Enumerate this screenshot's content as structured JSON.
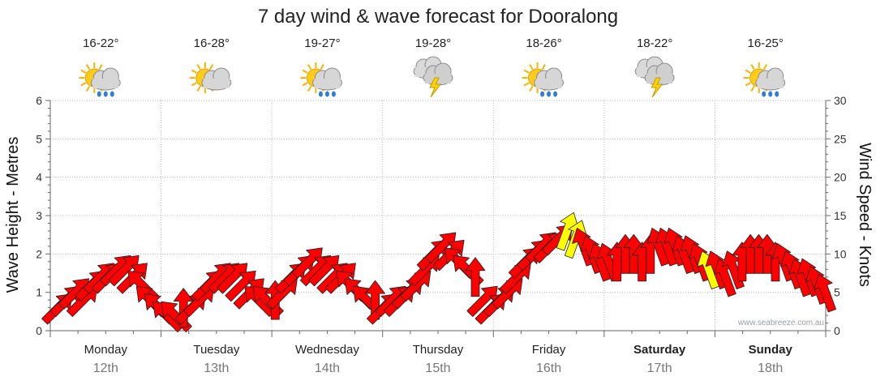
{
  "chart_data": {
    "type": "line",
    "title": "7 day wind & wave forecast for Dooralong",
    "ylabel_left": "Wave Height - Metres",
    "ylabel_right": "Wind Speed - Knots",
    "ylim_left": [
      0,
      6
    ],
    "ylim_right": [
      0,
      30
    ],
    "left_ticks": [
      "0",
      "1",
      "2",
      "3",
      "4",
      "5",
      "6"
    ],
    "right_ticks": [
      "0",
      "5",
      "10",
      "15",
      "20",
      "25",
      "30"
    ],
    "credit": "www.seabreeze.com.au",
    "days": [
      {
        "name": "Monday",
        "date": "12th",
        "bold": false,
        "temp": "16-22°",
        "icon": "partly-cloudy-rain-icon"
      },
      {
        "name": "Tuesday",
        "date": "13th",
        "bold": false,
        "temp": "16-28°",
        "icon": "partly-cloudy-icon"
      },
      {
        "name": "Wednesday",
        "date": "14th",
        "bold": false,
        "temp": "19-27°",
        "icon": "partly-cloudy-rain-icon"
      },
      {
        "name": "Thursday",
        "date": "15th",
        "bold": false,
        "temp": "19-28°",
        "icon": "thunderstorm-icon"
      },
      {
        "name": "Friday",
        "date": "16th",
        "bold": false,
        "temp": "18-26°",
        "icon": "partly-cloudy-rain-icon"
      },
      {
        "name": "Saturday",
        "date": "17th",
        "bold": true,
        "temp": "18-22°",
        "icon": "thunderstorm-icon"
      },
      {
        "name": "Sunday",
        "date": "18th",
        "bold": true,
        "temp": "16-25°",
        "icon": "partly-cloudy-rain-icon"
      }
    ],
    "wind_series": {
      "name": "Wind speed (knots)",
      "values": [
        3,
        4,
        5,
        4,
        6,
        7,
        7,
        8,
        8,
        7,
        6,
        4,
        3,
        2,
        2,
        3,
        3,
        4,
        6,
        7,
        7,
        7,
        6,
        5,
        4,
        4,
        4,
        5,
        7,
        8,
        9,
        8,
        8,
        7,
        7,
        6,
        5,
        4,
        4,
        3,
        4,
        4,
        5,
        6,
        8,
        10,
        11,
        10,
        9,
        8,
        7,
        4,
        3,
        4,
        5,
        7,
        9,
        10,
        11,
        11,
        12,
        13,
        12,
        11,
        10,
        9,
        9,
        9,
        10,
        10,
        9,
        10,
        11,
        11,
        11,
        10,
        10,
        9,
        8,
        8,
        7,
        8,
        9,
        10,
        10,
        10,
        9,
        9,
        8,
        7,
        7,
        6,
        5
      ],
      "directions_deg": [
        225,
        225,
        225,
        225,
        225,
        225,
        225,
        225,
        225,
        225,
        135,
        135,
        135,
        135,
        135,
        180,
        225,
        225,
        225,
        225,
        225,
        225,
        225,
        225,
        135,
        135,
        180,
        225,
        225,
        225,
        225,
        225,
        225,
        225,
        225,
        135,
        135,
        135,
        180,
        225,
        225,
        225,
        225,
        225,
        225,
        225,
        225,
        225,
        135,
        135,
        180,
        225,
        225,
        225,
        225,
        225,
        225,
        225,
        225,
        225,
        225,
        200,
        200,
        160,
        160,
        160,
        160,
        180,
        180,
        180,
        180,
        180,
        160,
        160,
        160,
        160,
        160,
        160,
        160,
        160,
        160,
        160,
        180,
        180,
        180,
        180,
        180,
        160,
        160,
        160,
        160,
        160,
        160
      ],
      "highlight_indices": [
        61,
        62,
        78
      ]
    }
  }
}
